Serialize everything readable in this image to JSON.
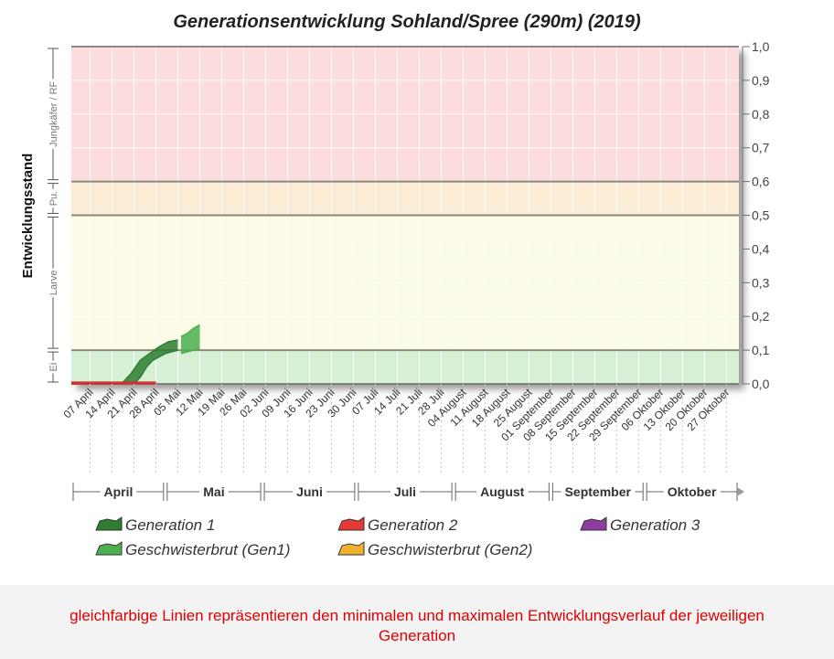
{
  "chart_data": {
    "type": "area",
    "title": "Generationsentwicklung Sohland/Spree (290m) (2019)",
    "ylabel": "Entwicklungsstand",
    "ylim": [
      0,
      1
    ],
    "yticks": [
      "0,0",
      "0,1",
      "0,2",
      "0,3",
      "0,4",
      "0,5",
      "0,6",
      "0,7",
      "0,8",
      "0,9",
      "1,0"
    ],
    "stages": [
      {
        "label": "Ei",
        "from": 0.0,
        "to": 0.1,
        "color": "#d6f0d6"
      },
      {
        "label": "Larve",
        "from": 0.1,
        "to": 0.5,
        "color": "#fbfbe8"
      },
      {
        "label": "Pu.",
        "from": 0.5,
        "to": 0.6,
        "color": "#fbecd5"
      },
      {
        "label": "Jungkäfer / RF",
        "from": 0.6,
        "to": 1.0,
        "color": "#fcdcdc"
      }
    ],
    "stage_boundaries": [
      0.1,
      0.5,
      0.6
    ],
    "dates": [
      "07 April",
      "14 April",
      "21 April",
      "28 April",
      "05 Mai",
      "12 Mai",
      "19 Mai",
      "26 Mai",
      "02 Juni",
      "09 Juni",
      "16 Juni",
      "23 Juni",
      "30 Juni",
      "07 Juli",
      "14 Juli",
      "21 Juli",
      "28 Juli",
      "04 August",
      "11 August",
      "18 August",
      "25 August",
      "01 September",
      "08 September",
      "15 September",
      "22 September",
      "29 September",
      "06 Oktober",
      "13 Oktober",
      "20 Oktober",
      "27 Oktober"
    ],
    "months": [
      {
        "label": "April",
        "from": "2019-04-01",
        "to": "2019-04-30"
      },
      {
        "label": "Mai",
        "from": "2019-05-01",
        "to": "2019-05-31"
      },
      {
        "label": "Juni",
        "from": "2019-06-01",
        "to": "2019-06-30"
      },
      {
        "label": "Juli",
        "from": "2019-07-01",
        "to": "2019-07-31"
      },
      {
        "label": "August",
        "from": "2019-08-01",
        "to": "2019-08-31"
      },
      {
        "label": "September",
        "from": "2019-09-01",
        "to": "2019-09-30"
      },
      {
        "label": "Oktober",
        "from": "2019-10-01",
        "to": "2019-10-31"
      }
    ],
    "x_range": [
      "2019-04-01",
      "2019-10-31"
    ],
    "series": [
      {
        "name": "Generation 1",
        "color": "#2e7d32",
        "min": [
          [
            "2019-04-01",
            0
          ],
          [
            "2019-04-21",
            0
          ],
          [
            "2019-04-23",
            0.02
          ],
          [
            "2019-04-25",
            0.05
          ],
          [
            "2019-04-27",
            0.07
          ],
          [
            "2019-04-29",
            0.08
          ],
          [
            "2019-05-01",
            0.09
          ],
          [
            "2019-05-03",
            0.095
          ],
          [
            "2019-05-05",
            0.1
          ]
        ],
        "max": [
          [
            "2019-04-01",
            0
          ],
          [
            "2019-04-17",
            0
          ],
          [
            "2019-04-20",
            0.03
          ],
          [
            "2019-04-23",
            0.07
          ],
          [
            "2019-04-26",
            0.09
          ],
          [
            "2019-04-29",
            0.11
          ],
          [
            "2019-05-02",
            0.125
          ],
          [
            "2019-05-05",
            0.13
          ]
        ]
      },
      {
        "name": "Geschwisterbrut (Gen1)",
        "color": "#4caf50",
        "min": [
          [
            "2019-05-06",
            0.09
          ],
          [
            "2019-05-08",
            0.095
          ],
          [
            "2019-05-10",
            0.1
          ],
          [
            "2019-05-12",
            0.105
          ]
        ],
        "max": [
          [
            "2019-05-06",
            0.14
          ],
          [
            "2019-05-08",
            0.15
          ],
          [
            "2019-05-10",
            0.165
          ],
          [
            "2019-05-12",
            0.175
          ]
        ]
      },
      {
        "name": "Generation 2",
        "color": "#d32f2f",
        "min": [
          [
            "2019-04-01",
            0
          ],
          [
            "2019-04-28",
            0
          ]
        ],
        "max": [
          [
            "2019-04-01",
            0.005
          ],
          [
            "2019-04-28",
            0.005
          ]
        ]
      }
    ],
    "legend": [
      {
        "label": "Generation 1",
        "color": "#2e7d32"
      },
      {
        "label": "Generation 2",
        "color": "#e53935"
      },
      {
        "label": "Generation 3",
        "color": "#8e3c9e"
      },
      {
        "label": "Geschwisterbrut (Gen1)",
        "color": "#4caf50"
      },
      {
        "label": "Geschwisterbrut (Gen2)",
        "color": "#f0b030"
      }
    ],
    "legend_position": "bottom",
    "grid": true
  },
  "caption": {
    "line1": "gleichfarbige Linien repräsentieren den minimalen und maximalen Entwicklungsverlauf der jeweiligen",
    "line2": "Generation"
  }
}
